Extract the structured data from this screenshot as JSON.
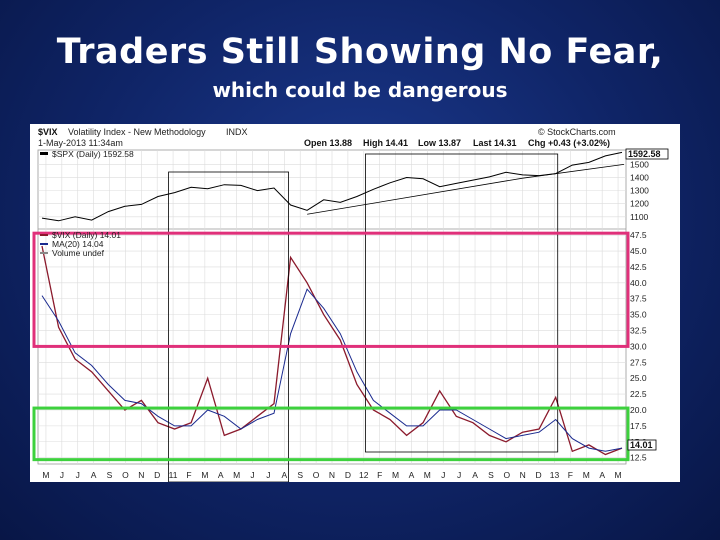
{
  "slide": {
    "title": "Traders Still Showing No Fear,",
    "subtitle": "which could be dangerous"
  },
  "chart_header": {
    "symbol": "$VIX",
    "name": "Volatility Index - New Methodology",
    "exchange": "INDX",
    "date": "1-May-2013 11:34am",
    "source": "© StockCharts.com",
    "open": "Open 13.88",
    "high": "High 14.41",
    "low": "Low 13.87",
    "last": "Last 14.31",
    "chg": "Chg +0.43 (+3.02%)",
    "spx_legend": "$SPX (Daily) 1592.58",
    "vix_legend": "$VIX (Daily) 14.01",
    "ma_legend": "MA(20) 14.04",
    "volume_legend": "Volume undef",
    "spx_last_tag": "1592.58",
    "vix_last_tag": "14.01"
  },
  "colors": {
    "spx_line": "#000000",
    "vix_line": "#8b1a2c",
    "ma_line": "#1a2a8f",
    "pink_box": "#e0307a",
    "green_box": "#3dd13d",
    "grid": "#dcdcdc"
  },
  "chart_data": [
    {
      "type": "line",
      "name": "$SPX (Daily)",
      "x": [
        "2010-05",
        "2010-06",
        "2010-07",
        "2010-08",
        "2010-09",
        "2010-10",
        "2010-11",
        "2010-12",
        "2011-01",
        "2011-02",
        "2011-03",
        "2011-04",
        "2011-05",
        "2011-06",
        "2011-07",
        "2011-08",
        "2011-09",
        "2011-10",
        "2011-11",
        "2011-12",
        "2012-01",
        "2012-02",
        "2012-03",
        "2012-04",
        "2012-05",
        "2012-06",
        "2012-07",
        "2012-08",
        "2012-09",
        "2012-10",
        "2012-11",
        "2012-12",
        "2013-01",
        "2013-02",
        "2013-03",
        "2013-04"
      ],
      "values": [
        1090,
        1070,
        1100,
        1075,
        1140,
        1180,
        1195,
        1255,
        1285,
        1325,
        1315,
        1345,
        1340,
        1300,
        1320,
        1190,
        1150,
        1230,
        1210,
        1255,
        1310,
        1360,
        1400,
        1390,
        1330,
        1355,
        1380,
        1405,
        1440,
        1420,
        1415,
        1430,
        1495,
        1515,
        1565,
        1592
      ],
      "yticks": [
        1100,
        1200,
        1300,
        1400,
        1500
      ],
      "ylim": [
        1030,
        1610
      ]
    },
    {
      "type": "line",
      "name": "$VIX (Daily)",
      "x": [
        "2010-05",
        "2010-06",
        "2010-07",
        "2010-08",
        "2010-09",
        "2010-10",
        "2010-11",
        "2010-12",
        "2011-01",
        "2011-02",
        "2011-03",
        "2011-04",
        "2011-05",
        "2011-06",
        "2011-07",
        "2011-08",
        "2011-09",
        "2011-10",
        "2011-11",
        "2011-12",
        "2012-01",
        "2012-02",
        "2012-03",
        "2012-04",
        "2012-05",
        "2012-06",
        "2012-07",
        "2012-08",
        "2012-09",
        "2012-10",
        "2012-11",
        "2012-12",
        "2013-01",
        "2013-02",
        "2013-03",
        "2013-04"
      ],
      "values": [
        45.8,
        33,
        28,
        26,
        23,
        20,
        21.5,
        18,
        17,
        18,
        25,
        16,
        17,
        19,
        21,
        44,
        40,
        35,
        31,
        24,
        20,
        18.5,
        16,
        18,
        23,
        19,
        18,
        16,
        15,
        16.5,
        17,
        22,
        13.5,
        14.5,
        13,
        14.0
      ],
      "ma20": [
        38,
        34,
        29,
        27,
        24,
        21.5,
        21,
        19,
        17.5,
        17.5,
        20,
        19,
        17,
        18.5,
        19.5,
        32,
        39,
        36,
        32,
        26,
        21.5,
        19.5,
        17.5,
        17.5,
        20,
        20,
        18.5,
        17,
        15.5,
        16,
        16.5,
        18.5,
        15.5,
        14,
        13.5,
        14.0
      ],
      "yticks": [
        12.5,
        15.0,
        17.5,
        20.0,
        22.5,
        25.0,
        27.5,
        30.0,
        32.5,
        35.0,
        37.5,
        40.0,
        42.5,
        45.0,
        47.5
      ],
      "ylim": [
        11.5,
        48
      ]
    }
  ],
  "x_axis_labels": [
    "M",
    "J",
    "J",
    "A",
    "S",
    "O",
    "N",
    "D",
    "11",
    "F",
    "M",
    "A",
    "M",
    "J",
    "J",
    "A",
    "S",
    "O",
    "N",
    "D",
    "12",
    "F",
    "M",
    "A",
    "M",
    "J",
    "J",
    "A",
    "S",
    "O",
    "N",
    "D",
    "13",
    "F",
    "M",
    "A",
    "M"
  ]
}
